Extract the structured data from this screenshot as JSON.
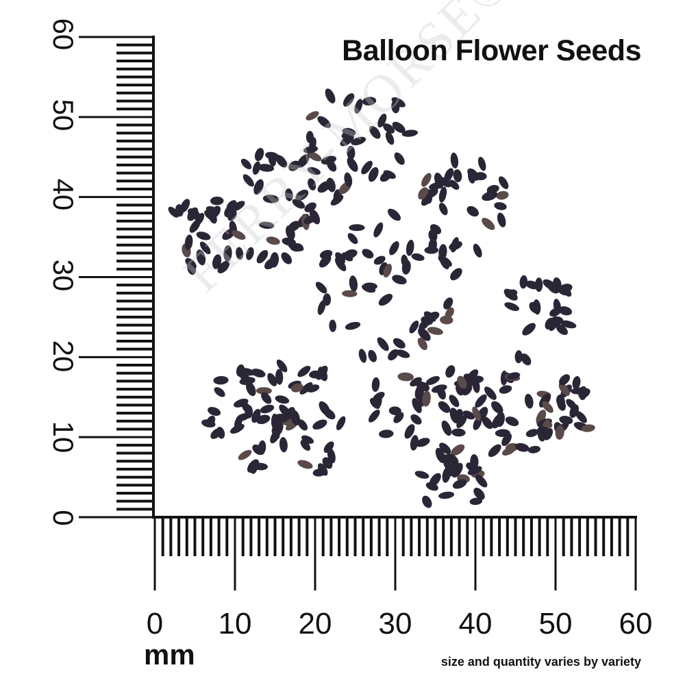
{
  "title": "Balloon Flower Seeds",
  "unit_label": "mm",
  "note": "size and quantity varies by variety",
  "watermark": "FERRY-MORSE®",
  "vertical_ruler": {
    "labels": [
      "0",
      "10",
      "20",
      "30",
      "40",
      "50",
      "60"
    ]
  },
  "horizontal_ruler": {
    "labels": [
      "0",
      "10",
      "20",
      "30",
      "40",
      "50",
      "60"
    ]
  },
  "colors": {
    "seed": "#2b2636",
    "ink": "#111111"
  }
}
